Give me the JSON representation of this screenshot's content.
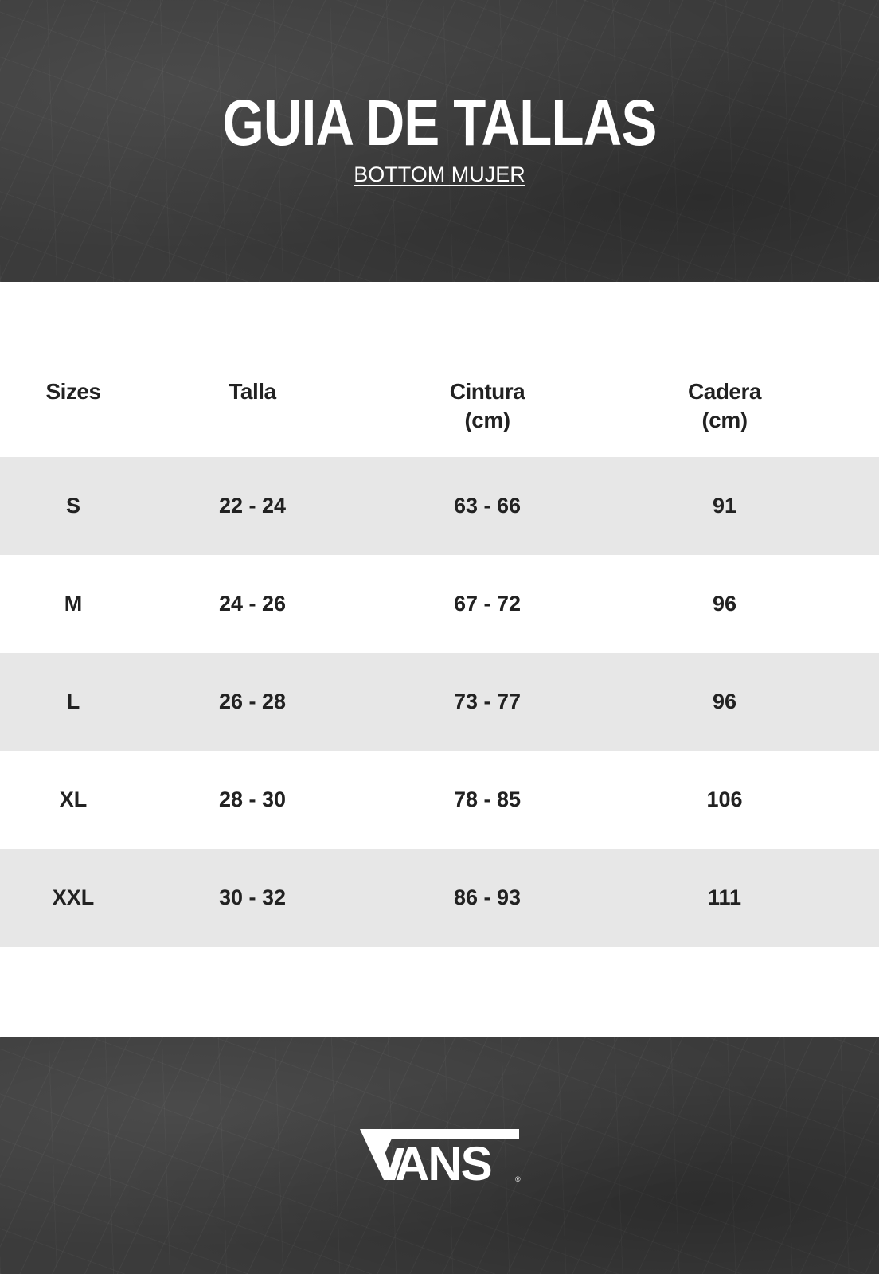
{
  "header": {
    "title": "GUIA DE TALLAS",
    "subtitle": "BOTTOM MUJER"
  },
  "table": {
    "columns": [
      {
        "line1": "Sizes",
        "line2": ""
      },
      {
        "line1": "Talla",
        "line2": ""
      },
      {
        "line1": "Cintura",
        "line2": "(cm)"
      },
      {
        "line1": "Cadera",
        "line2": "(cm)"
      }
    ],
    "rows": [
      [
        "S",
        "22 - 24",
        "63 - 66",
        "91"
      ],
      [
        "M",
        "24 - 26",
        "67 - 72",
        "96"
      ],
      [
        "L",
        "26 - 28",
        "73 - 77",
        "96"
      ],
      [
        "XL",
        "28 - 30",
        "78 - 85",
        "106"
      ],
      [
        "XXL",
        "30 - 32",
        "86 - 93",
        "111"
      ]
    ]
  },
  "footer": {
    "logo_text": "VANS"
  }
}
